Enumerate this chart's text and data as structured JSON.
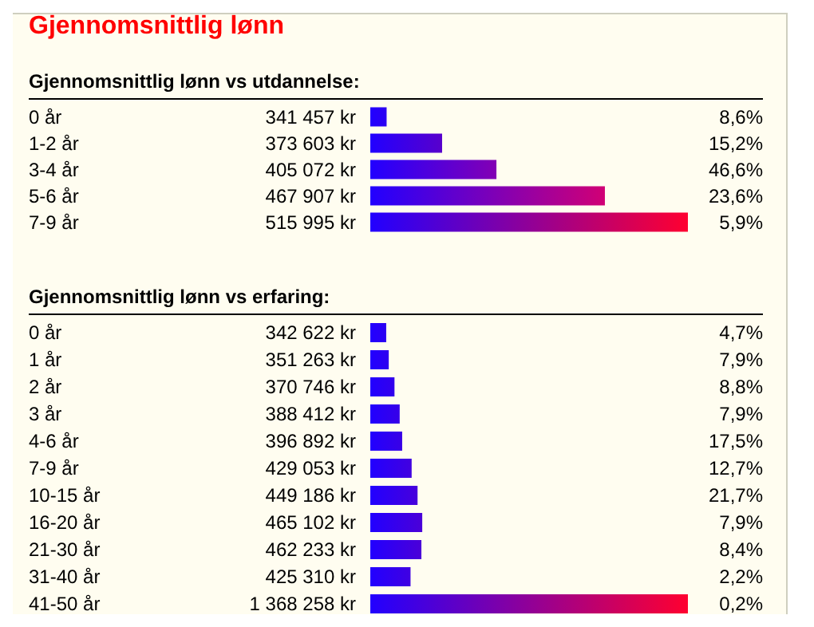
{
  "chart_data": [
    {
      "type": "bar",
      "orientation": "horizontal",
      "title": "Gjennomsnittlig lønn",
      "subtitle": "Gjennomsnittlig lønn vs utdannelse:",
      "categories": [
        "0 år",
        "1-2 år",
        "3-4 år",
        "5-6 år",
        "7-9 år"
      ],
      "xlim": [
        332000,
        516000
      ],
      "tick_labels": "y",
      "series": [
        {
          "values": [
            341457,
            373603,
            405072,
            467907,
            515995
          ],
          "value_labels": [
            "341 457 kr",
            "373 603 kr",
            "405 072 kr",
            "467 907 kr",
            "515 995 kr"
          ],
          "colors": [
            "#2c00f2",
            "#5800cc",
            "#8300b4",
            "#d10075",
            "#ff0030"
          ]
        }
      ],
      "annotations": [
        "8,6%",
        "15,2%",
        "46,6%",
        "23,6%",
        "5,9%"
      ]
    },
    {
      "type": "bar",
      "orientation": "horizontal",
      "title": "Gjennomsnittlig lønn vs erfaring:",
      "categories": [
        "0 år",
        "1 år",
        "2 år",
        "3 år",
        "4-6 år",
        "7-9 år",
        "10-15 år",
        "16-20 år",
        "21-30 år",
        "31-40 år",
        "41-50 år"
      ],
      "xlim": [
        288500,
        1368258
      ],
      "tick_labels": "y",
      "series": [
        {
          "values": [
            342622,
            351263,
            370746,
            388412,
            396892,
            429053,
            449186,
            465102,
            462233,
            425310,
            1368258
          ],
          "value_labels": [
            "342 622 kr",
            "351 263 kr",
            "370 746 kr",
            "388 412 kr",
            "396 892 kr",
            "429 053 kr",
            "449 186 kr",
            "465 102 kr",
            "462 233 kr",
            "425 310 kr",
            "1 368 258 kr"
          ],
          "colors": [
            "#2c00f2",
            "#2e00f0",
            "#3300ec",
            "#3700e8",
            "#3900e6",
            "#4200e0",
            "#4700dc",
            "#4b00d8",
            "#4b00d8",
            "#4000e2",
            "#ff0030"
          ]
        }
      ],
      "annotations": [
        "4,7%",
        "7,9%",
        "8,8%",
        "7,9%",
        "17,5%",
        "12,7%",
        "21,7%",
        "7,9%",
        "8,4%",
        "2,2%",
        "0,2%"
      ]
    }
  ]
}
